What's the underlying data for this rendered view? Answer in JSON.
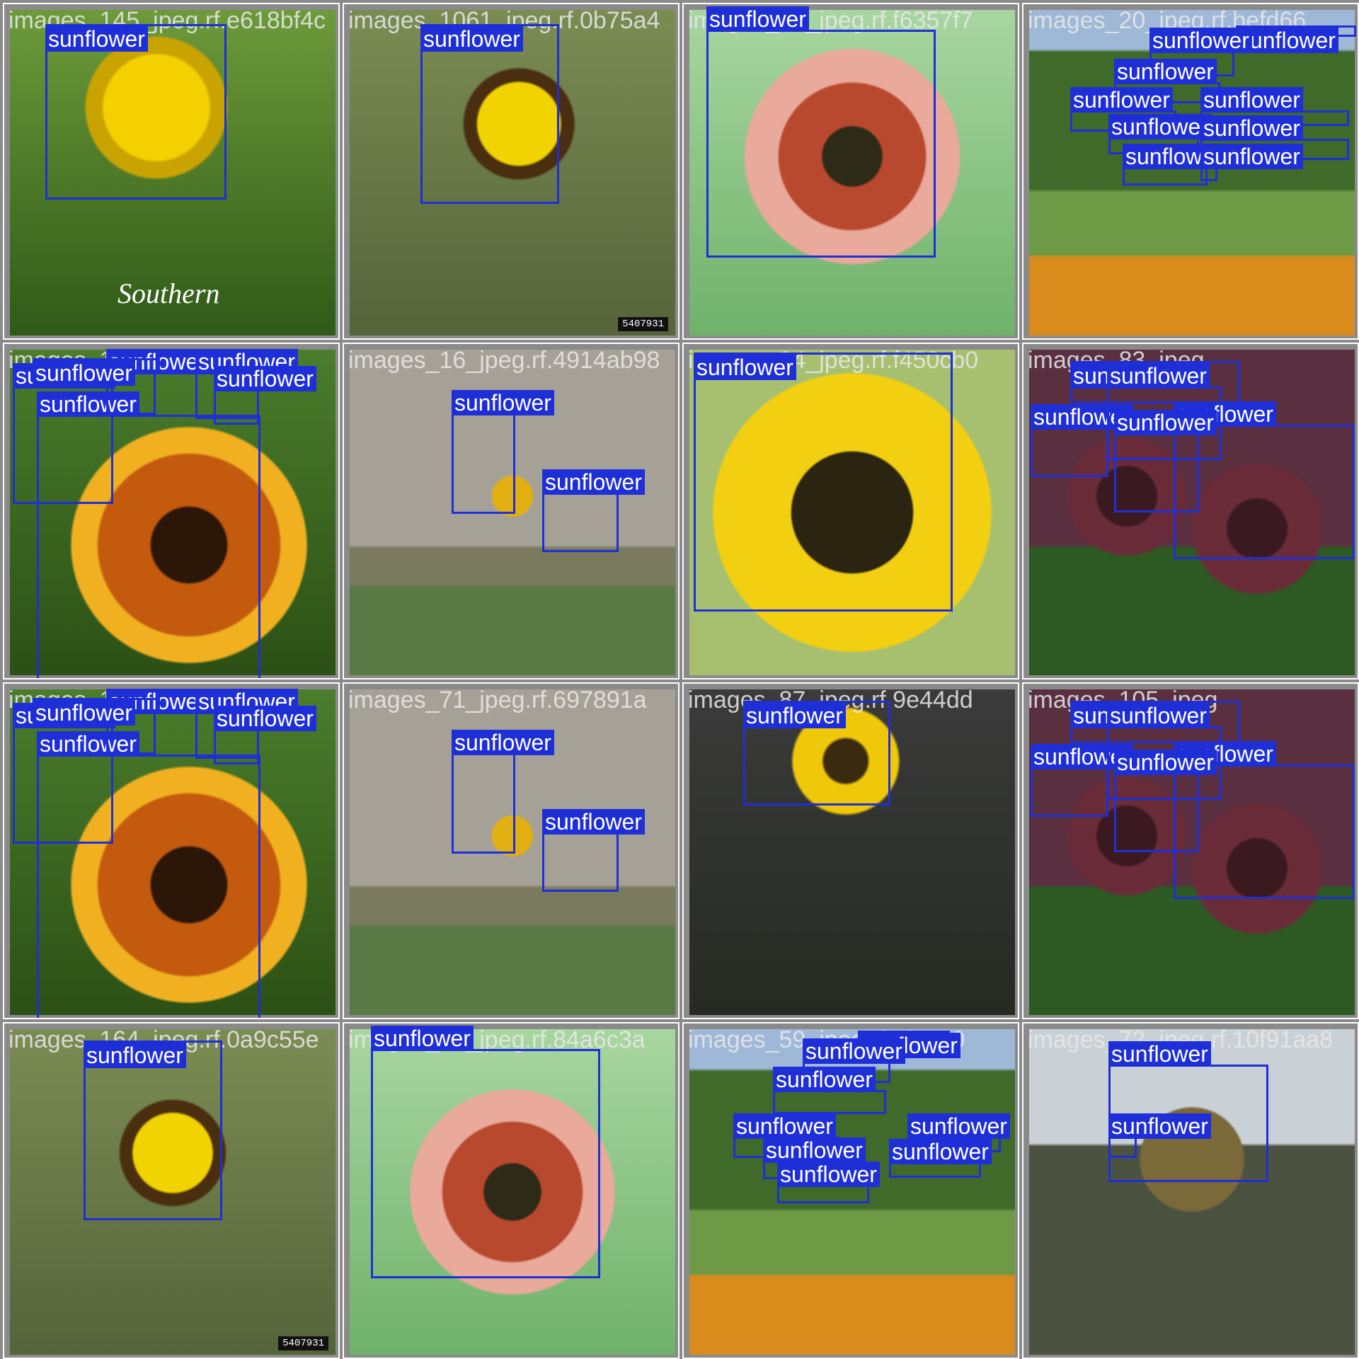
{
  "tiles": [
    {
      "filename": "images_145_jpeg.rf.e618bf4c",
      "labels": [
        "sunflower"
      ],
      "stamp": "",
      "logo": "Southern"
    },
    {
      "filename": "images_1061_jpeg.rf.0b75a4",
      "labels": [
        "sunflower"
      ],
      "stamp": "5407931",
      "logo": ""
    },
    {
      "filename": "images_96_jpeg.rf.f6357f7",
      "labels": [
        "sunflower"
      ],
      "stamp": "",
      "logo": ""
    },
    {
      "filename": "images_20_jpeg.rf.befd66",
      "labels": [
        "sunflower",
        "sunflower",
        "sunflower",
        "sunflower",
        "sunflower",
        "sunflower",
        "sunflower",
        "sunflower",
        "sunflower"
      ],
      "stamp": "",
      "logo": ""
    },
    {
      "filename": "images_131_jpeg",
      "labels": [
        "sunflower",
        "sunflower",
        "sunflower",
        "sunflower",
        "sunflower",
        "sunflower"
      ],
      "stamp": "",
      "logo": ""
    },
    {
      "filename": "images_16_jpeg.rf.4914ab98",
      "labels": [
        "sunflower",
        "sunflower"
      ],
      "stamp": "",
      "logo": ""
    },
    {
      "filename": "images_94_jpeg.rf.f450cb0",
      "labels": [
        "sunflower"
      ],
      "stamp": "",
      "logo": ""
    },
    {
      "filename": "images_83_jpeg",
      "labels": [
        "sunflower",
        "sunflower",
        "sunflower",
        "sunflower",
        "sunflower"
      ],
      "stamp": "",
      "logo": ""
    },
    {
      "filename": "images_131_jpeg",
      "labels": [
        "sunflower",
        "sunflower",
        "sunflower",
        "sunflower",
        "sunflower",
        "sunflower"
      ],
      "stamp": "",
      "logo": ""
    },
    {
      "filename": "images_71_jpeg.rf.697891a",
      "labels": [
        "sunflower",
        "sunflower"
      ],
      "stamp": "",
      "logo": ""
    },
    {
      "filename": "images_87_jpeg.rf.9e44dd",
      "labels": [
        "sunflower"
      ],
      "stamp": "",
      "logo": ""
    },
    {
      "filename": "images_105_jpeg",
      "labels": [
        "sunflower",
        "sunflower",
        "sunflower",
        "sunflower",
        "sunflower"
      ],
      "stamp": "",
      "logo": ""
    },
    {
      "filename": "images_164_jpeg.rf.0a9c55e",
      "labels": [
        "sunflower"
      ],
      "stamp": "5407931",
      "logo": ""
    },
    {
      "filename": "images_12_jpeg.rf.84a6c3a",
      "labels": [
        "sunflower"
      ],
      "stamp": "",
      "logo": ""
    },
    {
      "filename": "images_59_jpeg.rf.4f32c0",
      "labels": [
        "sunflower",
        "sunflower",
        "sunflower",
        "sunflower",
        "sunflower",
        "sunflower",
        "sunflower",
        "sunflower"
      ],
      "stamp": "",
      "logo": ""
    },
    {
      "filename": "images_72_jpeg.rf.10f91aa8",
      "labels": [
        "sunflower",
        "sunflower"
      ],
      "stamp": "",
      "logo": ""
    }
  ],
  "colors": {
    "box": "#1f2fd8",
    "label_text": "#ffffff",
    "border": "#8a8a8a"
  }
}
